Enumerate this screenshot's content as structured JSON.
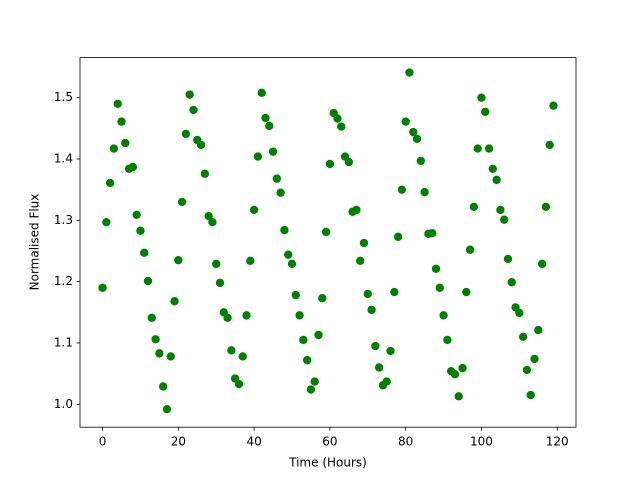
{
  "chart_data": {
    "type": "scatter",
    "xlabel": "Time (Hours)",
    "ylabel": "Normalised Flux",
    "color": "#008000",
    "grid": false,
    "x": [
      0,
      1,
      2,
      3,
      4,
      5,
      6,
      7,
      8,
      9,
      10,
      11,
      12,
      13,
      14,
      15,
      16,
      17,
      18,
      19,
      20,
      21,
      22,
      23,
      24,
      25,
      26,
      27,
      28,
      29,
      30,
      31,
      32,
      33,
      34,
      35,
      36,
      37,
      38,
      39,
      40,
      41,
      42,
      43,
      44,
      45,
      46,
      47,
      48,
      49,
      50,
      51,
      52,
      53,
      54,
      55,
      56,
      57,
      58,
      59,
      60,
      61,
      62,
      63,
      64,
      65,
      66,
      67,
      68,
      69,
      70,
      71,
      72,
      73,
      74,
      75,
      76,
      77,
      78,
      79,
      80,
      81,
      82,
      83,
      84,
      85,
      86,
      87,
      88,
      89,
      90,
      91,
      92,
      93,
      94,
      95,
      96,
      97,
      98,
      99,
      100,
      101,
      102,
      103,
      104,
      105,
      106,
      107,
      108,
      109,
      110,
      111,
      112,
      113,
      114,
      115,
      116,
      117,
      118,
      119
    ],
    "values": [
      1.19,
      1.297,
      1.361,
      1.417,
      1.49,
      1.461,
      1.426,
      1.384,
      1.387,
      1.309,
      1.283,
      1.247,
      1.201,
      1.141,
      1.106,
      1.083,
      1.029,
      0.992,
      1.078,
      1.168,
      1.235,
      1.33,
      1.441,
      1.505,
      1.48,
      1.431,
      1.423,
      1.376,
      1.307,
      1.297,
      1.229,
      1.198,
      1.15,
      1.141,
      1.088,
      1.042,
      1.033,
      1.078,
      1.145,
      1.234,
      1.317,
      1.404,
      1.508,
      1.467,
      1.454,
      1.412,
      1.368,
      1.345,
      1.284,
      1.244,
      1.229,
      1.178,
      1.145,
      1.105,
      1.072,
      1.024,
      1.037,
      1.113,
      1.173,
      1.281,
      1.392,
      1.475,
      1.466,
      1.453,
      1.404,
      1.395,
      1.314,
      1.317,
      1.234,
      1.263,
      1.18,
      1.154,
      1.095,
      1.06,
      1.031,
      1.037,
      1.087,
      1.183,
      1.273,
      1.35,
      1.461,
      1.541,
      1.444,
      1.433,
      1.397,
      1.346,
      1.278,
      1.279,
      1.221,
      1.19,
      1.145,
      1.105,
      1.054,
      1.049,
      1.013,
      1.059,
      1.183,
      1.252,
      1.322,
      1.417,
      1.5,
      1.477,
      1.417,
      1.384,
      1.366,
      1.317,
      1.301,
      1.237,
      1.199,
      1.158,
      1.149,
      1.11,
      1.056,
      1.015,
      1.074,
      1.121,
      1.229,
      1.322,
      1.423,
      1.487
    ],
    "xlim": [
      -5.95,
      124.95
    ],
    "xticks": [
      0,
      20,
      40,
      60,
      80,
      100,
      120
    ],
    "ylim": [
      0.9626,
      1.5654
    ],
    "yticks": [
      {
        "value": 1.0,
        "label": "1.0"
      },
      1.1,
      1.2,
      1.3,
      1.4,
      1.5
    ]
  }
}
